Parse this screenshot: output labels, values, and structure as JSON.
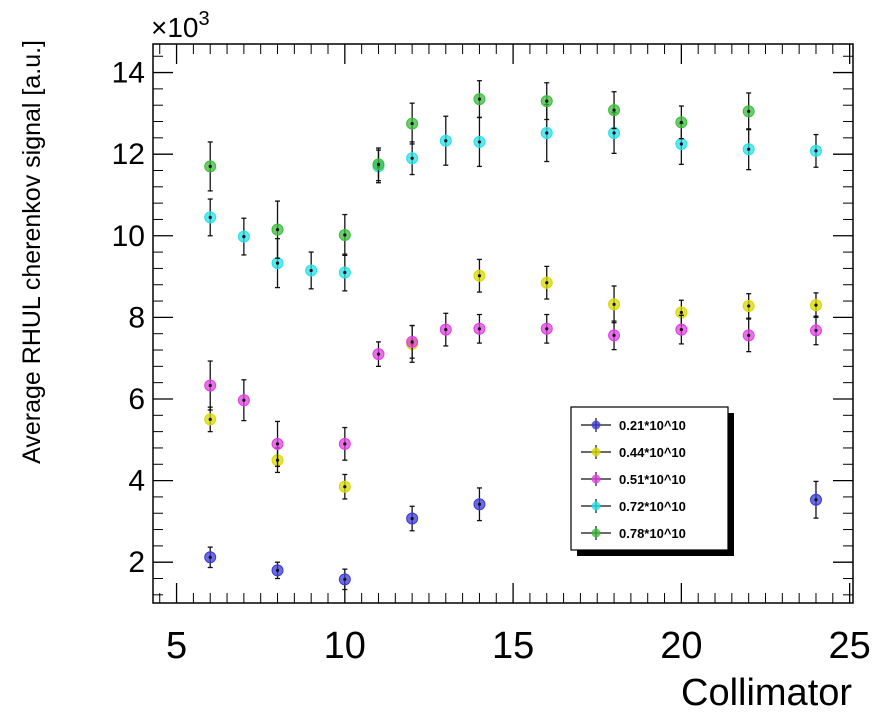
{
  "chart_data": {
    "type": "scatter",
    "title": "",
    "xlabel": "Collimator",
    "ylabel": "Average RHUL cherenkov signal [a.u.]",
    "y_multiplier_label": "×10",
    "y_multiplier_exp": "3",
    "xlim": [
      4.3,
      25.1
    ],
    "ylim": [
      1.0,
      14.7
    ],
    "x_ticks": [
      5,
      10,
      15,
      20,
      25
    ],
    "y_ticks": [
      2,
      4,
      6,
      8,
      10,
      12,
      14
    ],
    "x_tick_labels": [
      "5",
      "10",
      "15",
      "20",
      "25"
    ],
    "y_tick_labels": [
      "2",
      "4",
      "6",
      "8",
      "10",
      "12",
      "14"
    ],
    "grid": false,
    "legend_position": "lower-right",
    "series": [
      {
        "name": "0.21*10^10",
        "color": "#3a3ad8",
        "points": [
          {
            "x": 6,
            "y": 2.12,
            "err": 0.25
          },
          {
            "x": 8,
            "y": 1.8,
            "err": 0.2
          },
          {
            "x": 10,
            "y": 1.58,
            "err": 0.25
          },
          {
            "x": 12,
            "y": 3.07,
            "err": 0.3
          },
          {
            "x": 14,
            "y": 3.42,
            "err": 0.4
          },
          {
            "x": 24,
            "y": 3.53,
            "err": 0.45
          }
        ]
      },
      {
        "name": "0.44*10^10",
        "color": "#d8d800",
        "points": [
          {
            "x": 6,
            "y": 5.5,
            "err": 0.3
          },
          {
            "x": 8,
            "y": 4.5,
            "err": 0.3
          },
          {
            "x": 10,
            "y": 3.85,
            "err": 0.3
          },
          {
            "x": 12,
            "y": 7.35,
            "err": 0.45
          },
          {
            "x": 14,
            "y": 9.02,
            "err": 0.4
          },
          {
            "x": 16,
            "y": 8.85,
            "err": 0.4
          },
          {
            "x": 18,
            "y": 8.32,
            "err": 0.45
          },
          {
            "x": 20,
            "y": 8.12,
            "err": 0.3
          },
          {
            "x": 22,
            "y": 8.28,
            "err": 0.3
          },
          {
            "x": 24,
            "y": 8.3,
            "err": 0.3
          }
        ]
      },
      {
        "name": "0.51*10^10",
        "color": "#e040e0",
        "points": [
          {
            "x": 6,
            "y": 6.33,
            "err": 0.6
          },
          {
            "x": 7,
            "y": 5.97,
            "err": 0.5
          },
          {
            "x": 8,
            "y": 4.9,
            "err": 0.55
          },
          {
            "x": 10,
            "y": 4.9,
            "err": 0.4
          },
          {
            "x": 11,
            "y": 7.1,
            "err": 0.3
          },
          {
            "x": 12,
            "y": 7.4,
            "err": 0.4
          },
          {
            "x": 13,
            "y": 7.7,
            "err": 0.4
          },
          {
            "x": 14,
            "y": 7.72,
            "err": 0.35
          },
          {
            "x": 16,
            "y": 7.72,
            "err": 0.35
          },
          {
            "x": 18,
            "y": 7.56,
            "err": 0.35
          },
          {
            "x": 20,
            "y": 7.7,
            "err": 0.35
          },
          {
            "x": 22,
            "y": 7.56,
            "err": 0.4
          },
          {
            "x": 24,
            "y": 7.68,
            "err": 0.35
          }
        ]
      },
      {
        "name": "0.72*10^10",
        "color": "#28e0e8",
        "points": [
          {
            "x": 6,
            "y": 10.45,
            "err": 0.45
          },
          {
            "x": 7,
            "y": 9.98,
            "err": 0.45
          },
          {
            "x": 8,
            "y": 9.33,
            "err": 0.6
          },
          {
            "x": 9,
            "y": 9.15,
            "err": 0.45
          },
          {
            "x": 10,
            "y": 9.1,
            "err": 0.45
          },
          {
            "x": 11,
            "y": 11.7,
            "err": 0.4
          },
          {
            "x": 12,
            "y": 11.9,
            "err": 0.4
          },
          {
            "x": 13,
            "y": 12.33,
            "err": 0.6
          },
          {
            "x": 14,
            "y": 12.3,
            "err": 0.6
          },
          {
            "x": 16,
            "y": 12.52,
            "err": 0.7
          },
          {
            "x": 18,
            "y": 12.52,
            "err": 0.5
          },
          {
            "x": 20,
            "y": 12.25,
            "err": 0.5
          },
          {
            "x": 22,
            "y": 12.12,
            "err": 0.5
          },
          {
            "x": 24,
            "y": 12.08,
            "err": 0.4
          }
        ]
      },
      {
        "name": "0.78*10^10",
        "color": "#3cbc3c",
        "points": [
          {
            "x": 6,
            "y": 11.7,
            "err": 0.6
          },
          {
            "x": 8,
            "y": 10.15,
            "err": 0.7
          },
          {
            "x": 10,
            "y": 10.02,
            "err": 0.5
          },
          {
            "x": 11,
            "y": 11.75,
            "err": 0.4
          },
          {
            "x": 12,
            "y": 12.75,
            "err": 0.5
          },
          {
            "x": 14,
            "y": 13.35,
            "err": 0.45
          },
          {
            "x": 16,
            "y": 13.3,
            "err": 0.45
          },
          {
            "x": 18,
            "y": 13.08,
            "err": 0.45
          },
          {
            "x": 20,
            "y": 12.78,
            "err": 0.4
          },
          {
            "x": 22,
            "y": 13.05,
            "err": 0.45
          }
        ]
      }
    ]
  }
}
